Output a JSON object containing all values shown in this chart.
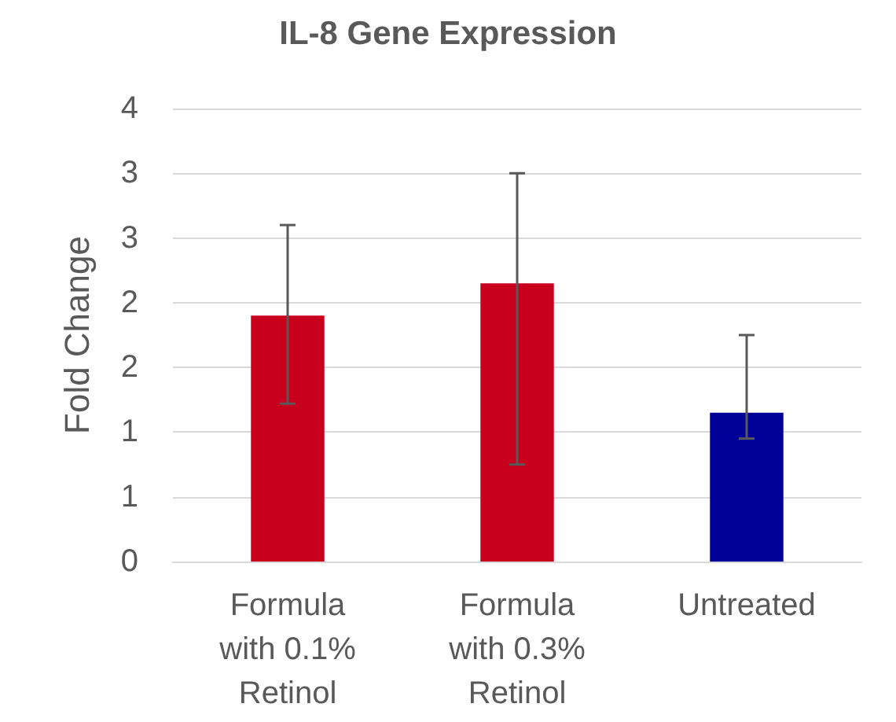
{
  "chart_data": {
    "type": "bar",
    "title": "IL-8 Gene Expression",
    "ylabel": "Fold Change",
    "categories": [
      "Formula\nwith 0.1%\nRetinol",
      "Formula\nwith 0.3%\nRetinol",
      "Untreated"
    ],
    "values": [
      1.9,
      2.15,
      1.15
    ],
    "colors": [
      "#c8001e",
      "#c8001e",
      "#000099"
    ],
    "errors": [
      [
        1.22,
        2.6
      ],
      [
        0.75,
        3.0
      ],
      [
        0.95,
        1.75
      ]
    ],
    "ylim": [
      0,
      3.5
    ],
    "yticks": [
      0,
      {
        "value": 0.5,
        "label": "1"
      },
      1,
      {
        "value": 1.5,
        "label": "2"
      },
      2,
      {
        "value": 2.5,
        "label": "3"
      },
      3,
      {
        "value": 3.5,
        "label": "4"
      }
    ],
    "grid": "y"
  }
}
